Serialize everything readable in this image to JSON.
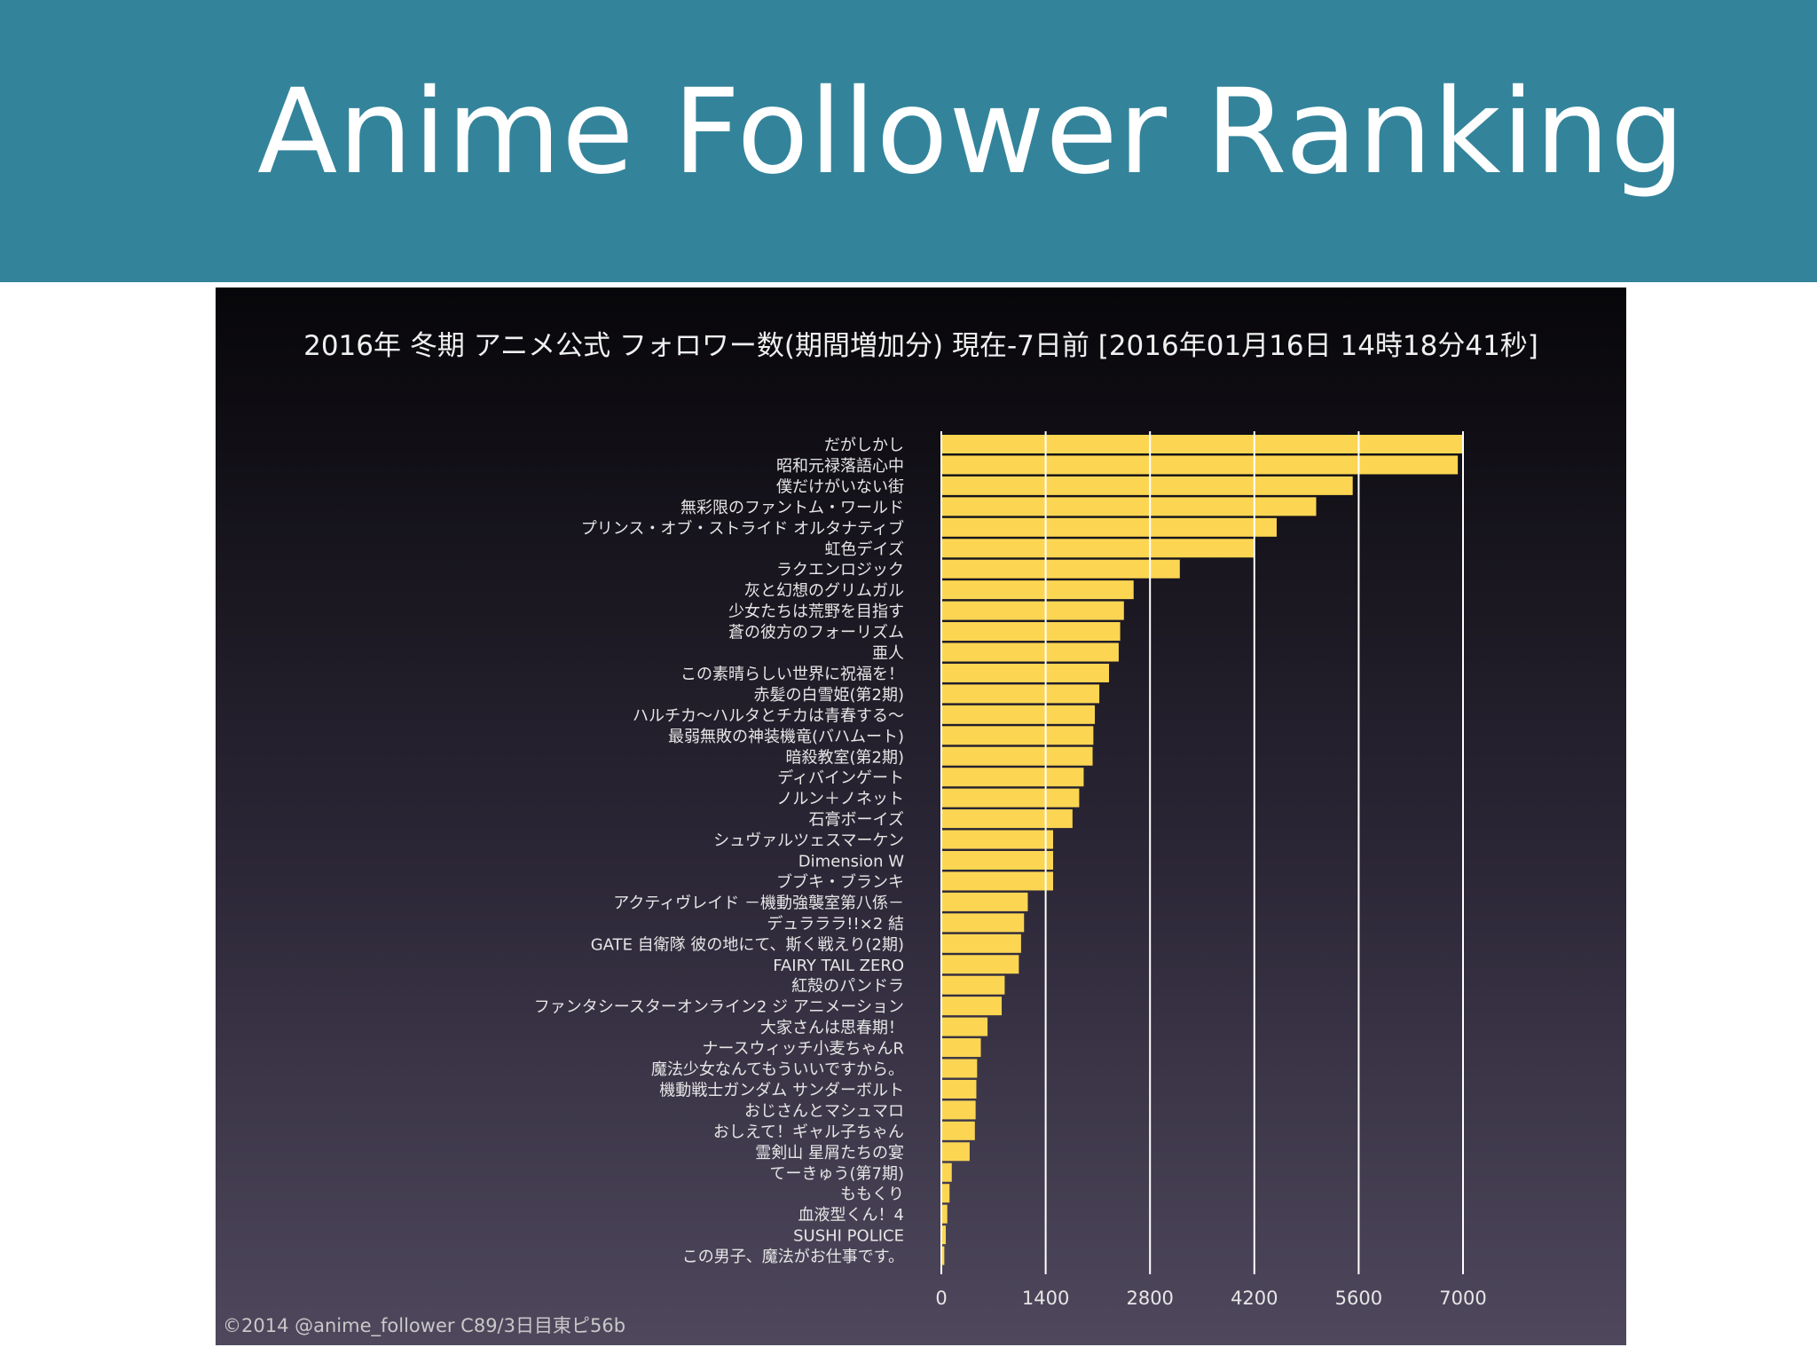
{
  "header": {
    "title": "Anime Follower Ranking"
  },
  "footer": {
    "credit": "©2014 @anime_follower C89/3日目東ピ56b"
  },
  "chart_data": {
    "type": "bar",
    "orientation": "horizontal",
    "title": "2016年 冬期 アニメ公式 フォロワー数(期間増加分) 現在-7日前 [2016年01月16日 14時18分41秒]",
    "xlabel": "",
    "ylabel": "",
    "xlim": [
      0,
      7000
    ],
    "xticks": [
      0,
      1400,
      2800,
      4200,
      5600,
      7000
    ],
    "grid": true,
    "bar_color": "#fcd653",
    "categories": [
      "だがしかし",
      "昭和元禄落語心中",
      "僕だけがいない街",
      "無彩限のファントム・ワールド",
      "プリンス・オブ・ストライド オルタナティブ",
      "虹色デイズ",
      "ラクエンロジック",
      "灰と幻想のグリムガル",
      "少女たちは荒野を目指す",
      "蒼の彼方のフォーリズム",
      "亜人",
      "この素晴らしい世界に祝福を！",
      "赤髪の白雪姫(第2期)",
      "ハルチカ～ハルタとチカは青春する～",
      "最弱無敗の神装機竜(バハムート)",
      "暗殺教室(第2期)",
      "ディバインゲート",
      "ノルン＋ノネット",
      "石膏ボーイズ",
      "シュヴァルツェスマーケン",
      "Dimension W",
      "ブブキ・ブランキ",
      "アクティヴレイド －機動強襲室第八係－",
      "デュラララ!!×2 結",
      "GATE 自衛隊 彼の地にて、斯く戦えり(2期)",
      "FAIRY TAIL ZERO",
      "紅殻のパンドラ",
      "ファンタシースターオンライン2 ジ アニメーション",
      "大家さんは思春期！",
      "ナースウィッチ小麦ちゃんR",
      "魔法少女なんてもういいですから。",
      "機動戦士ガンダム サンダーボルト",
      "おじさんとマシュマロ",
      "おしえて！ギャル子ちゃん",
      "霊剣山 星屑たちの宴",
      "てーきゅう(第7期)",
      "ももくり",
      "血液型くん！4",
      "SUSHI POLICE",
      "この男子、魔法がお仕事です。"
    ],
    "values": [
      7000,
      6930,
      5520,
      5030,
      4500,
      4190,
      3200,
      2580,
      2450,
      2400,
      2380,
      2250,
      2120,
      2060,
      2040,
      2030,
      1910,
      1850,
      1760,
      1500,
      1500,
      1500,
      1160,
      1110,
      1070,
      1040,
      850,
      810,
      620,
      530,
      480,
      470,
      460,
      450,
      380,
      140,
      110,
      80,
      60,
      40
    ]
  }
}
